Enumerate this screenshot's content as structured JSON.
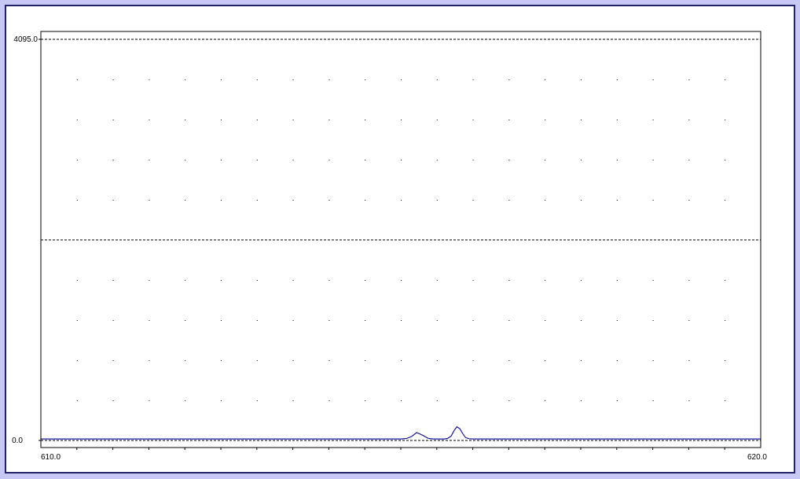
{
  "colors": {
    "background": "#c8c8f4",
    "frame_border": "#22226a",
    "plot_background": "#ffffff",
    "trace": "#1a1aa0",
    "grid": "#000000"
  },
  "chart_data": {
    "type": "line",
    "title": "",
    "xlabel": "",
    "ylabel": "",
    "xlim": [
      610.0,
      620.0
    ],
    "ylim": [
      0.0,
      4095.0
    ],
    "x_tick_labels": [
      "610.0",
      "620.0"
    ],
    "y_tick_labels": [
      "4095.0",
      "0.0"
    ],
    "reference_lines_y": [
      4095.0,
      2047.5,
      0.0
    ],
    "dot_grid": true,
    "series": [
      {
        "x": [
          610.0,
          614.0,
          615.0,
          615.08,
          615.15,
          615.22,
          615.3,
          615.38,
          615.45,
          615.5,
          615.6,
          615.65,
          615.7,
          615.74,
          615.78,
          615.82,
          615.86,
          615.9,
          615.95,
          616.0,
          616.05,
          616.2,
          617.0,
          620.0
        ],
        "y": [
          15,
          15,
          15,
          20,
          40,
          80,
          55,
          22,
          15,
          15,
          15,
          20,
          45,
          100,
          140,
          120,
          70,
          30,
          18,
          15,
          15,
          15,
          15,
          15
        ]
      }
    ]
  }
}
